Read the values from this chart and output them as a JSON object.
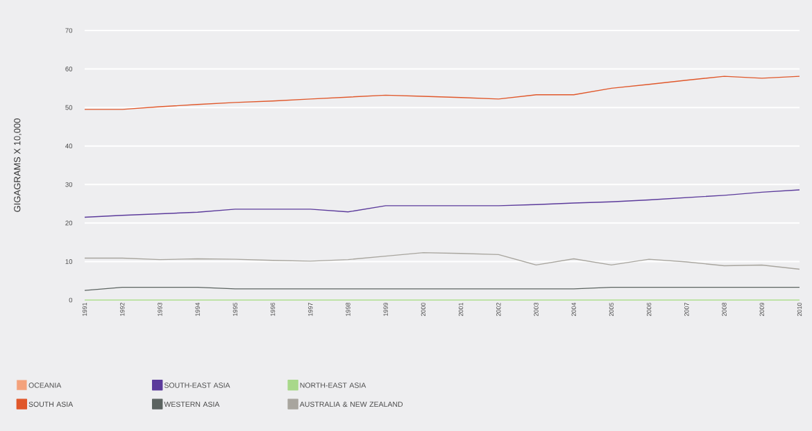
{
  "chart_data": {
    "type": "line",
    "ylabel": "GIGAGRAMS X 10,000",
    "categories": [
      "1991",
      "1992",
      "1993",
      "1994",
      "1995",
      "1996",
      "1997",
      "1998",
      "1999",
      "2000",
      "2001",
      "2002",
      "2003",
      "2004",
      "2005",
      "2006",
      "2007",
      "2008",
      "2009",
      "2010"
    ],
    "series": [
      {
        "name": "OCEANIA",
        "color": "#f4a27c",
        "values": [
          null,
          null,
          null,
          null,
          null,
          null,
          null,
          null,
          null,
          null,
          null,
          null,
          null,
          null,
          null,
          null,
          null,
          null,
          null,
          null
        ]
      },
      {
        "name": "SOUTH-EAST ASIA",
        "color": "#5b3a9b",
        "values": [
          21.5,
          22.0,
          22.4,
          22.8,
          23.6,
          23.6,
          23.6,
          22.9,
          24.5,
          24.5,
          24.5,
          24.5,
          24.8,
          25.2,
          25.5,
          26.0,
          26.6,
          27.2,
          28.0,
          28.6
        ]
      },
      {
        "name": "NORTH-EAST ASIA",
        "color": "#a8d88a",
        "values": [
          0,
          0,
          0,
          0,
          0,
          0,
          0,
          0,
          0,
          0,
          0,
          0,
          0,
          0,
          0,
          0,
          0,
          0,
          0,
          0
        ]
      },
      {
        "name": "SOUTH ASIA",
        "color": "#e0572a",
        "values": [
          49.5,
          49.5,
          50.2,
          50.8,
          51.3,
          51.7,
          52.2,
          52.7,
          53.2,
          52.9,
          52.6,
          52.2,
          53.3,
          53.3,
          55.0,
          56.0,
          57.1,
          58.1,
          57.6,
          58.1
        ]
      },
      {
        "name": "WESTERN ASIA",
        "color": "#5b6360",
        "values": [
          2.5,
          3.3,
          3.3,
          3.3,
          2.9,
          2.9,
          2.9,
          2.9,
          2.9,
          2.9,
          2.9,
          2.9,
          2.9,
          2.9,
          3.3,
          3.3,
          3.3,
          3.3,
          3.3,
          3.3
        ]
      },
      {
        "name": "AUSTRALIA & NEW ZEALAND",
        "color": "#a8a59e",
        "values": [
          10.9,
          10.9,
          10.5,
          10.7,
          10.6,
          10.3,
          10.1,
          10.5,
          11.4,
          12.3,
          12.1,
          11.8,
          9.1,
          10.7,
          9.1,
          10.6,
          9.9,
          8.9,
          9.1,
          8.0
        ]
      }
    ],
    "ylim": [
      0,
      70
    ],
    "yticks": [
      0,
      10,
      20,
      30,
      40,
      50,
      60,
      70
    ],
    "grid": "y",
    "legend": "bottom left",
    "marker": "none",
    "line_style": "solid"
  }
}
